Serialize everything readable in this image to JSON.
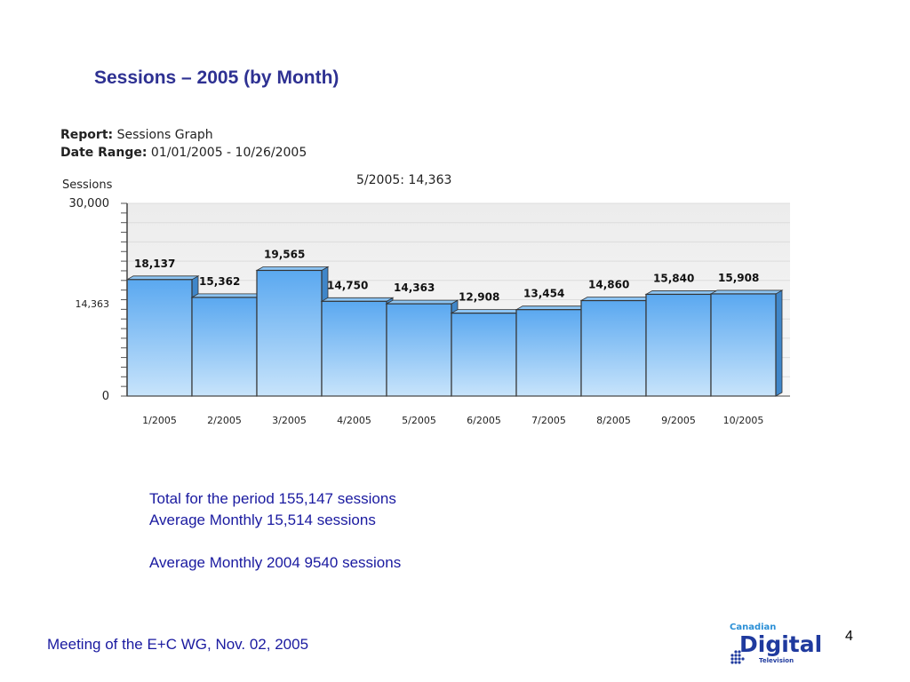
{
  "slide": {
    "title": "Sessions – 2005 (by Month)",
    "footer": "Meeting of the E+C WG, Nov. 02, 2005",
    "page_number": "4"
  },
  "report": {
    "report_label": "Report:",
    "report_value": "Sessions Graph",
    "range_label": "Date Range:",
    "range_value": "01/01/2005 - 10/26/2005",
    "hover_readout": "5/2005: 14,363"
  },
  "stats": {
    "line1": "Total for the period  155,147 sessions",
    "line2": "Average Monthly  15,514 sessions",
    "line3": "Average Monthly 2004   9540 sessions"
  },
  "logo": {
    "top_text": "Canadian",
    "main_text": "Digital",
    "sub_text": "Television"
  },
  "colors": {
    "title": "#2e3192",
    "bar_top": "#5aa8f0",
    "bar_bottom": "#c8e4fb",
    "bar_border": "#333333",
    "plot_bg": "#f2f2f2",
    "stats_text": "#1a1aa0"
  },
  "chart_data": {
    "type": "bar",
    "ylabel": "Sessions",
    "xlabel": "",
    "categories": [
      "1/2005",
      "2/2005",
      "3/2005",
      "4/2005",
      "5/2005",
      "6/2005",
      "7/2005",
      "8/2005",
      "9/2005",
      "10/2005"
    ],
    "values": [
      18137,
      15362,
      19565,
      14750,
      14363,
      12908,
      13454,
      14860,
      15840,
      15908
    ],
    "data_labels": [
      "18,137",
      "15,362",
      "19,565",
      "14,750",
      "14,363",
      "12,908",
      "13,454",
      "14,860",
      "15,840",
      "15,908"
    ],
    "ylim": [
      0,
      30000
    ],
    "y_tick_labels": [
      {
        "value": 0,
        "label": "0"
      },
      {
        "value": 14363,
        "label": "14,363"
      },
      {
        "value": 30000,
        "label": "30,000"
      }
    ],
    "grid": true,
    "legend": "none"
  }
}
